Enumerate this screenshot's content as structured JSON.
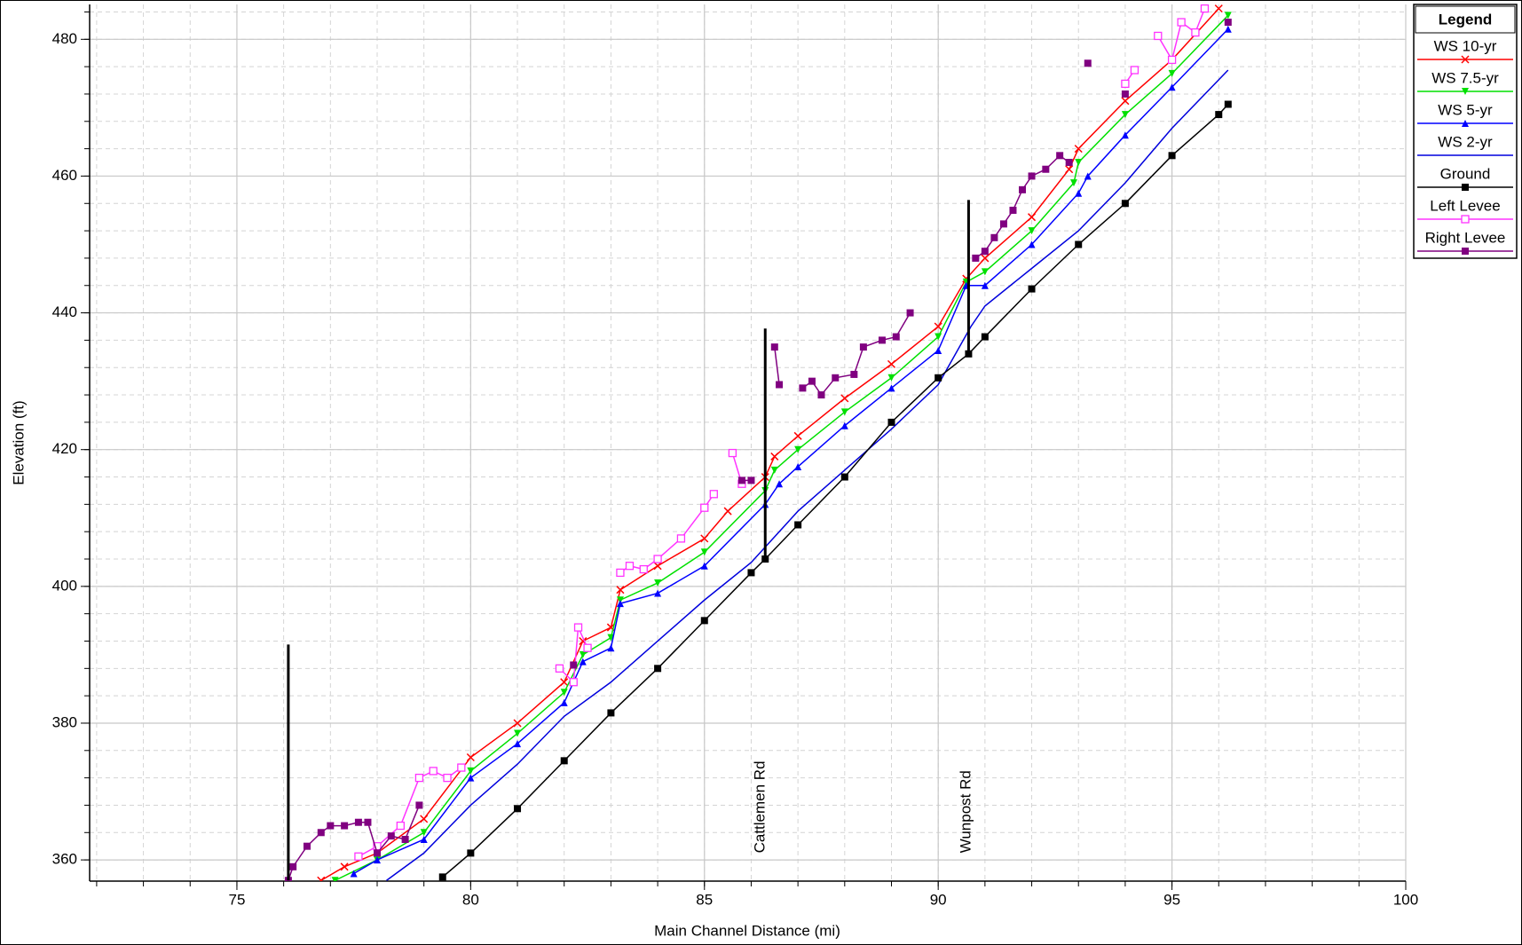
{
  "chart_data": {
    "type": "line",
    "x_label": "Main Channel Distance (mi)",
    "y_label": "Elevation (ft)",
    "xlim": [
      71.85,
      100
    ],
    "ylim": [
      356.9,
      485.1
    ],
    "xticks": [
      75,
      80,
      85,
      90,
      95,
      100
    ],
    "yticks": [
      360,
      380,
      400,
      420,
      440,
      460,
      480
    ],
    "grid": true,
    "minor_grid": {
      "x_step": 1,
      "y_step": 4
    },
    "legend": {
      "title": "Legend",
      "position": "right"
    },
    "series": [
      {
        "name": "WS  10-yr",
        "color": "#ff0000",
        "marker": "x",
        "x": [
          76.8,
          77.3,
          78,
          79,
          80,
          81,
          82,
          82.4,
          83,
          83.2,
          84,
          85,
          85.5,
          86.3,
          86.5,
          87,
          88,
          89,
          90,
          90.6,
          91,
          92,
          92.8,
          93,
          94,
          95,
          96
        ],
        "values": [
          357,
          359,
          361,
          366,
          375,
          380,
          386,
          392,
          394,
          399.5,
          403,
          407,
          411,
          416,
          419,
          422,
          427.5,
          432.5,
          438,
          445,
          448,
          454,
          461,
          464,
          471,
          477,
          484.5
        ]
      },
      {
        "name": "WS  7.5-yr",
        "color": "#00e000",
        "marker": "tri-down",
        "x": [
          77.1,
          78,
          79,
          80,
          81,
          82,
          82.4,
          83,
          83.2,
          84,
          85,
          86.3,
          86.5,
          87,
          88,
          89,
          90,
          90.6,
          91,
          92,
          92.9,
          93,
          94,
          95,
          96.2
        ],
        "values": [
          357,
          360,
          364,
          373,
          378.5,
          384.5,
          390,
          392.5,
          398,
          400.5,
          405,
          414,
          417,
          420,
          425.5,
          430.5,
          436.5,
          444.5,
          446,
          452,
          459,
          462,
          469,
          475,
          483.5
        ]
      },
      {
        "name": "WS  5-yr",
        "color": "#0000ff",
        "marker": "tri-up",
        "x": [
          77.5,
          78,
          79,
          80,
          81,
          82,
          82.4,
          83,
          83.2,
          84,
          85,
          86.3,
          86.6,
          87,
          88,
          89,
          90,
          90.6,
          91,
          92,
          93,
          93.2,
          94,
          95,
          96.2
        ],
        "values": [
          358,
          360,
          363,
          372,
          377,
          383,
          389,
          391,
          397.5,
          399,
          403,
          412,
          415,
          417.5,
          423.5,
          429,
          434.5,
          444,
          444,
          450,
          457.5,
          460,
          466,
          473,
          481.5
        ]
      },
      {
        "name": "WS  2-yr",
        "color": "#0000dd",
        "marker": "none",
        "x": [
          78.2,
          79,
          80,
          81,
          82,
          83,
          84,
          85,
          86,
          87,
          88,
          89,
          90,
          90.7,
          91,
          92,
          93,
          94,
          95,
          96.2
        ],
        "values": [
          357,
          361,
          368,
          374,
          381,
          386,
          392,
          398,
          403.5,
          411,
          417,
          423,
          429.5,
          438,
          441,
          446.5,
          452,
          459,
          467,
          475.5
        ]
      },
      {
        "name": "Ground",
        "color": "#000000",
        "marker": "square",
        "x": [
          79.4,
          80,
          81,
          82,
          83,
          84,
          85,
          86,
          86.3,
          87,
          88,
          89,
          90,
          90.65,
          91,
          92,
          93,
          94,
          95,
          96,
          96.2
        ],
        "values": [
          357.5,
          361,
          367.5,
          374.5,
          381.5,
          388,
          395,
          402,
          404,
          409,
          416,
          424,
          430.5,
          434,
          436.5,
          443.5,
          450,
          456,
          463,
          469,
          470.5
        ]
      },
      {
        "name": "Left Levee",
        "color": "#ff33ff",
        "marker": "open-square",
        "x": [
          77.6,
          78,
          78.5,
          78.9,
          79.2,
          79.5,
          79.8,
          null,
          81.9,
          82.2,
          82.3,
          82.5,
          null,
          83.2,
          83.4,
          83.7,
          84,
          84.5,
          85,
          85.2,
          null,
          85.6,
          85.8,
          null,
          94,
          94.2,
          null,
          94.7,
          95,
          95.2,
          95.5,
          95.7
        ],
        "values": [
          360.5,
          362,
          365,
          372,
          373,
          372,
          373.5,
          null,
          388,
          386,
          394,
          391,
          null,
          402,
          403,
          402.5,
          404,
          407,
          411.5,
          413.5,
          null,
          419.5,
          415,
          null,
          473.5,
          475.5,
          null,
          480.5,
          477,
          482.5,
          481,
          484.5
        ]
      },
      {
        "name": "Right Levee",
        "color": "#800080",
        "marker": "square",
        "x": [
          76.1,
          76.2,
          76.5,
          76.8,
          77,
          77.3,
          77.6,
          77.8,
          78,
          78.3,
          78.6,
          78.9,
          null,
          82.2,
          null,
          85.8,
          86,
          null,
          86.5,
          86.6,
          null,
          87.1,
          87.3,
          87.5,
          87.8,
          88.2,
          88.4,
          88.8,
          89.1,
          89.4,
          null,
          90.8,
          91,
          91.2,
          91.4,
          91.6,
          91.8,
          92,
          92.3,
          92.6,
          92.8,
          null,
          93.2,
          null,
          94,
          null,
          96.2
        ],
        "values": [
          357,
          359,
          362,
          364,
          365,
          365,
          365.5,
          365.5,
          361,
          363.5,
          363,
          368,
          null,
          388.5,
          null,
          415.5,
          415.5,
          null,
          435,
          429.5,
          null,
          429,
          430,
          428,
          430.5,
          431,
          435,
          436,
          436.5,
          440,
          null,
          448,
          449,
          451,
          453,
          455,
          458,
          460,
          461,
          463,
          462,
          null,
          476.5,
          null,
          472,
          null,
          482.5
        ]
      }
    ],
    "structures": [
      {
        "x": 76.1,
        "y": [
          357,
          391.5
        ]
      },
      {
        "x": 86.3,
        "y": [
          404,
          437.7
        ]
      },
      {
        "x": 90.65,
        "y": [
          434,
          456.5
        ]
      }
    ],
    "annotations": [
      {
        "text": "Cattlemen Rd",
        "x": 86.2,
        "y": 361
      },
      {
        "text": "Wunpost Rd",
        "x": 90.6,
        "y": 361
      }
    ]
  }
}
